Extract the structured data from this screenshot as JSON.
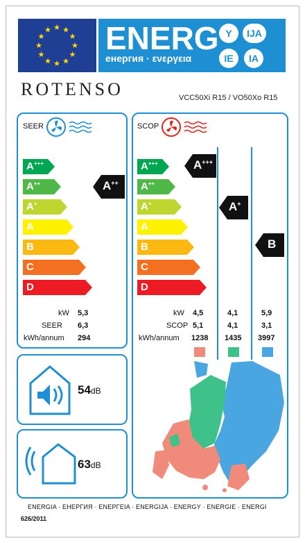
{
  "header": {
    "energy_title": "ENERG",
    "energy_sub": "енергия · ενεργεια",
    "suffixes": [
      "Y",
      "IJA",
      "IE",
      "IA"
    ]
  },
  "brand": {
    "name": "ROTENSO",
    "model": "VCC50Xi R15 / VO50Xo R15"
  },
  "classes": [
    {
      "label": "A",
      "plus": "+++",
      "color": "#00a651"
    },
    {
      "label": "A",
      "plus": "++",
      "color": "#50b848"
    },
    {
      "label": "A",
      "plus": "+",
      "color": "#bed630"
    },
    {
      "label": "A",
      "plus": "",
      "color": "#fff200"
    },
    {
      "label": "B",
      "plus": "",
      "color": "#fcb813"
    },
    {
      "label": "C",
      "plus": "",
      "color": "#f37021"
    },
    {
      "label": "D",
      "plus": "",
      "color": "#ed1c24"
    }
  ],
  "seer_panel": {
    "title": "SEER",
    "rating": {
      "label": "A",
      "plus": "++"
    },
    "rows": [
      {
        "label": "kW",
        "value": "5,3"
      },
      {
        "label": "SEER",
        "value": "6,3"
      },
      {
        "label": "kWh/annum",
        "value": "294"
      }
    ]
  },
  "scop_panel": {
    "title": "SCOP",
    "ratings": [
      {
        "label": "A",
        "plus": "+++"
      },
      {
        "label": "A",
        "plus": "+"
      },
      {
        "label": "B",
        "plus": ""
      }
    ],
    "row_labels": [
      "kW",
      "SCOP",
      "kWh/annum"
    ],
    "columns": [
      {
        "values": [
          "4,5",
          "5,1",
          "1238"
        ],
        "color": "#f08a7a"
      },
      {
        "values": [
          "4,1",
          "4,1",
          "1435"
        ],
        "color": "#3ec28a"
      },
      {
        "values": [
          "5,9",
          "3,1",
          "3997"
        ],
        "color": "#4aa6e0"
      }
    ]
  },
  "noise": [
    {
      "value": "54",
      "unit": "dB"
    },
    {
      "value": "63",
      "unit": "dB"
    }
  ],
  "footer": {
    "languages": "ENERGIA · ЕНЕРГИЯ · ΕΝΕΡΓΕΙΑ · ENERGIJA · ENERGY · ENERGIE · ENERGI",
    "regulation": "626/2011"
  }
}
